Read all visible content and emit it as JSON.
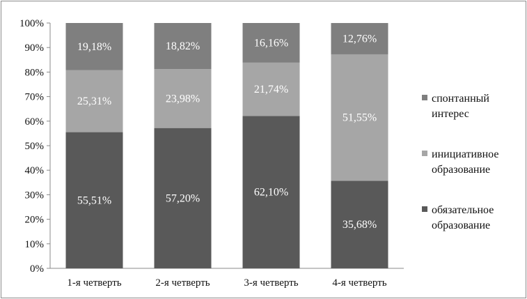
{
  "chart_data": {
    "type": "bar",
    "stacked": true,
    "normalized": true,
    "categories": [
      "1-я четверть",
      "2-я четверть",
      "3-я четверть",
      "4-я четверть"
    ],
    "series": [
      {
        "name": "обязательное образование",
        "legend_lines": [
          "обязательное",
          "образование"
        ],
        "values": [
          55.51,
          57.2,
          62.1,
          35.68
        ],
        "labels": [
          "55,51%",
          "57,20%",
          "62,10%",
          "35,68%"
        ],
        "color": "#595959"
      },
      {
        "name": "инициативное образование",
        "legend_lines": [
          "инициативное",
          "образование"
        ],
        "values": [
          25.31,
          23.98,
          21.74,
          51.55
        ],
        "labels": [
          "25,31%",
          "23,98%",
          "21,74%",
          "51,55%"
        ],
        "color": "#a6a6a6"
      },
      {
        "name": "спонтанный интерес",
        "legend_lines": [
          "спонтанный",
          "интерес"
        ],
        "values": [
          19.18,
          18.82,
          16.16,
          12.76
        ],
        "labels": [
          "19,18%",
          "18,82%",
          "16,16%",
          "12,76%"
        ],
        "color": "#7f7f7f"
      }
    ],
    "yticks": [
      "0%",
      "10%",
      "20%",
      "30%",
      "40%",
      "50%",
      "60%",
      "70%",
      "80%",
      "90%",
      "100%"
    ],
    "ylim": [
      0,
      100
    ],
    "title": "",
    "xlabel": "",
    "ylabel": "",
    "grid": false,
    "legend_position": "right"
  }
}
